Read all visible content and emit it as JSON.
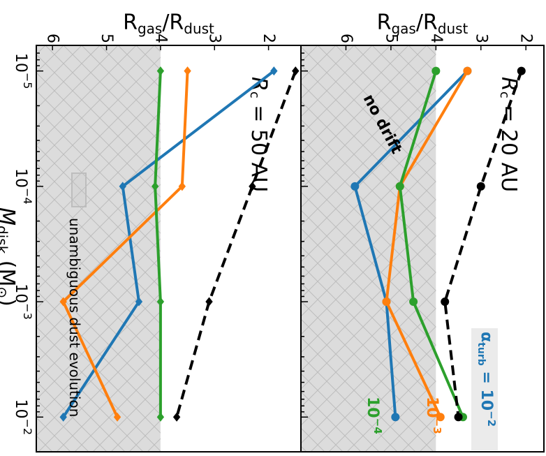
{
  "chart_data": [
    {
      "type": "line",
      "panel_label": "R",
      "panel_label_sub": "c",
      "panel_label_rest": " = 20 AU",
      "xlabel": "R",
      "xlabel_sub1": "gas",
      "xlabel_mid": "/R",
      "xlabel_sub2": "dust",
      "xlim": [
        1.6,
        7.0
      ],
      "x_ticks": [
        2,
        3,
        4,
        5,
        6
      ],
      "shaded_region_from": 4.0,
      "x": [
        1e-05,
        0.0001,
        0.001,
        0.01
      ],
      "series": [
        {
          "name_base": "10",
          "name_exp": "−2",
          "label_prefix": "α",
          "label_sub": "turb",
          "label_eq": " = ",
          "color": "#1f77b4",
          "marker": "circle",
          "values": [
            3.3,
            5.8,
            5.1,
            4.9
          ]
        },
        {
          "name_base": "10",
          "name_exp": "−3",
          "color": "#ff7f0e",
          "marker": "circle",
          "values": [
            3.3,
            4.8,
            5.1,
            3.9
          ]
        },
        {
          "name_base": "10",
          "name_exp": "−4",
          "color": "#2ca02c",
          "marker": "circle",
          "values": [
            4.0,
            4.8,
            4.5,
            3.4
          ]
        },
        {
          "name": "no drift",
          "color": "#000000",
          "marker": "circle",
          "dashed": true,
          "values": [
            2.1,
            3.0,
            3.8,
            3.5
          ]
        }
      ]
    },
    {
      "type": "line",
      "panel_label": "R",
      "panel_label_sub": "c",
      "panel_label_rest": " = 50 AU",
      "xlabel": "R",
      "xlabel_sub1": "gas",
      "xlabel_mid": "/R",
      "xlabel_sub2": "dust",
      "xlim": [
        1.4,
        6.3
      ],
      "x_ticks": [
        2,
        3,
        4,
        5,
        6
      ],
      "shaded_region_from": 4.0,
      "legend_entry": "unambiguous dust evolution",
      "x": [
        1e-05,
        0.0001,
        0.001,
        0.01
      ],
      "series": [
        {
          "color": "#1f77b4",
          "marker": "diamond",
          "values": [
            1.9,
            4.7,
            4.4,
            5.8
          ]
        },
        {
          "color": "#ff7f0e",
          "marker": "diamond",
          "values": [
            3.5,
            3.6,
            5.8,
            4.8
          ]
        },
        {
          "color": "#2ca02c",
          "marker": "diamond",
          "values": [
            4.0,
            4.1,
            4.0,
            4.0
          ]
        },
        {
          "color": "#000000",
          "marker": "diamond",
          "dashed": true,
          "values": [
            1.5,
            2.3,
            3.1,
            3.7
          ]
        }
      ]
    }
  ],
  "shared_axis": {
    "label": "M",
    "label_sub": "disk",
    "label_unit_open": " (M",
    "label_unit_sub": "⊙",
    "label_unit_close": ")",
    "scale": "log",
    "range": [
      6e-06,
      0.02
    ],
    "major_ticks": [
      {
        "value": 1e-05,
        "base": "10",
        "exp": "−5"
      },
      {
        "value": 0.0001,
        "base": "10",
        "exp": "−4"
      },
      {
        "value": 0.001,
        "base": "10",
        "exp": "−3"
      },
      {
        "value": 0.01,
        "base": "10",
        "exp": "−2"
      }
    ]
  }
}
